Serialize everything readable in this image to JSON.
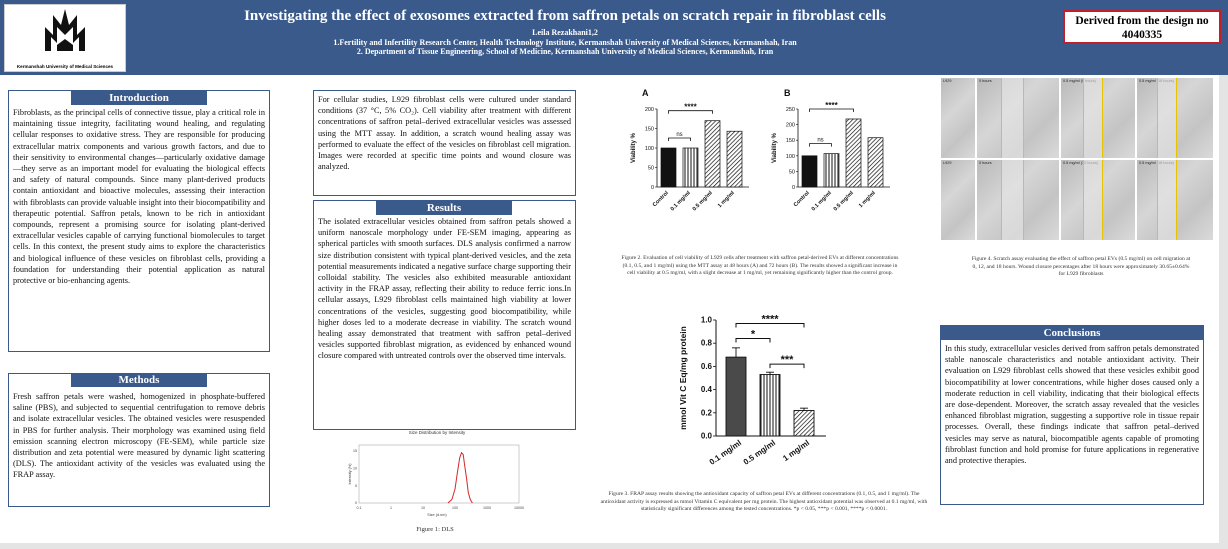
{
  "header": {
    "title": "Investigating the effect of exosomes extracted from saffron petals on scratch repair in fibroblast cells",
    "author": "Leila Rezakhani1,2",
    "affiliation_1": "1.Fertility and Infertility Research Center, Health Technology Institute, Kermanshah University of Medical Sciences, Kermanshah, Iran",
    "affiliation_2": "2. Department of Tissue Engineering, School of Medicine, Kermanshah University of Medical Sciences, Kermanshah, Iran",
    "logo_text": "Kermanshah University of Medical Sciences",
    "derived_label": "Derived from the design no 4040335"
  },
  "introduction": {
    "heading": "Introduction",
    "body": "Fibroblasts, as the principal cells of connective tissue, play a critical role in maintaining tissue integrity, facilitating wound healing, and regulating cellular responses to oxidative stress. They are responsible for producing extracellular matrix components and various growth factors, and due to their sensitivity to environmental changes—particularly oxidative damage—they serve as an important model for evaluating the biological effects and safety of natural compounds. Since many plant-derived products contain antioxidant and bioactive molecules, assessing their interaction with fibroblasts can provide valuable insight into their biocompatibility and therapeutic potential. Saffron petals, known to be rich in antioxidant compounds, represent a promising source for isolating plant-derived extracellular vesicles capable of carrying functional biomolecules to target cells. In this context, the present study aims to explore the characteristics and biological influence of these vesicles on fibroblast cells, providing a foundation for understanding their potential application as natural protective or bio-enhancing agents."
  },
  "methods": {
    "heading": "Methods",
    "body": "Fresh saffron petals were washed, homogenized in phosphate-buffered saline (PBS), and subjected to sequential centrifugation to remove debris and isolate extracellular vesicles. The obtained vesicles were resuspended in PBS for further analysis. Their morphology was examined using field emission scanning electron microscopy (FE-SEM), while particle size distribution and zeta potential were measured by dynamic light scattering (DLS). The antioxidant activity of the vesicles was evaluated using the FRAP assay."
  },
  "methods_cont": {
    "body": "For cellular studies, L929 fibroblast cells were cultured under standard conditions (37 °C, 5% CO₂). Cell viability after treatment with different concentrations of saffron petal–derived extracellular vesicles was assessed using the MTT assay. In addition, a scratch wound healing assay was performed to evaluate the effect of the vesicles on fibroblast cell migration. Images were recorded at specific time points and wound closure was analyzed."
  },
  "results": {
    "heading": "Results",
    "body": "The isolated extracellular vesicles obtained from saffron petals showed a uniform nanoscale morphology under FE-SEM imaging, appearing as spherical particles with smooth surfaces. DLS analysis confirmed a narrow size distribution consistent with typical plant-derived vesicles, and the zeta potential measurements indicated a negative surface charge supporting their colloidal stability. The vesicles also exhibited measurable antioxidant activity in the FRAP assay, reflecting their ability to reduce ferric ions.In cellular assays, L929 fibroblast cells maintained high viability at lower concentrations of the vesicles, suggesting good biocompatibility, while higher doses led to a moderate decrease in viability. The scratch wound healing assay demonstrated that treatment with saffron petal–derived vesicles supported fibroblast migration, as evidenced by enhanced wound closure compared with untreated controls over the observed time intervals."
  },
  "conclusions": {
    "heading": "Conclusions",
    "body": "In this study, extracellular vesicles derived from saffron petals demonstrated stable nanoscale characteristics and notable antioxidant activity. Their evaluation on L929 fibroblast cells showed that these vesicles exhibit good biocompatibility at lower concentrations, while higher doses caused only a moderate reduction in cell viability, indicating that their biological effects are dose-dependent. Moreover, the scratch assay revealed that the vesicles enhanced fibroblast migration, suggesting a supportive role in tissue repair processes. Overall, these findings indicate that saffron petal–derived vesicles may serve as natural, biocompatible agents capable of promoting fibroblast function and hold promise for future applications in regenerative and protective therapies."
  },
  "figures": {
    "fig1_caption": "Figure 1: DLS",
    "fig1_title": "Size Distribution by Intensity",
    "fig1_xlabel": "Size (d.nm)",
    "fig1_ylabel": "Intensity (%)",
    "fig2_caption": "Figure 2. Evaluation of cell viability of L929 cells after treatment with saffron petal-derived EVs at different concentrations (0.1, 0.5, and 1 mg/ml) using the MTT assay at 48 hours (A) and 72 hours (B). The results showed a significant increase in cell viability at 0.5 mg/ml, with a slight decrease at 1 mg/ml, yet remaining significantly higher than the control group.",
    "fig3_caption": "Figure 3. FRAP assay results showing the antioxidant capacity of saffron petal EVs at different concentrations (0.1, 0.5, and 1 mg/ml). The antioxidant activity is expressed as mmol Vitamin C equivalent per mg protein. The highest antioxidant potential was observed at 0.1 mg/ml, with statistically significant differences among the tested concentrations. *p < 0.05, ***p < 0.001, ****p < 0.0001.",
    "fig4_caption": "Figure 4. Scratch assay evaluating the effect of saffron petal EVs (0.5 mg/ml) on cell migration at 0, 12, and 18 hours. Wound closure percentages after 18 hours were approximately 30.65±0.64% for L929 fibroblasts",
    "fig4_labels": [
      "L929",
      "0 hours",
      "0.5 mg/ml (0 hours)",
      "0.5 mg/ml (18 hours)",
      "L929",
      "0 hours",
      "0.5 mg/ml (12 hours)",
      "0.5 mg/ml (18 hours)"
    ]
  },
  "chart_data": [
    {
      "id": "fig1",
      "type": "line",
      "title": "Size Distribution by Intensity",
      "xlabel": "Size (d.nm)",
      "ylabel": "Intensity (%)",
      "x_scale": "log",
      "x_ticks": [
        "0.1",
        "1",
        "10",
        "100",
        "1000",
        "10000"
      ],
      "y_ticks": [
        "0",
        "5",
        "10",
        "15"
      ],
      "x": [
        60,
        80,
        100,
        120,
        140,
        160,
        180,
        200,
        230,
        260,
        300,
        350
      ],
      "y": [
        0,
        1,
        4,
        9,
        13,
        14.5,
        14,
        11,
        7,
        3,
        1,
        0
      ]
    },
    {
      "id": "fig2A",
      "panel": "A",
      "type": "bar",
      "ylabel": "Viability %",
      "categories": [
        "Control",
        "0.1 mg/ml",
        "0.5 mg/ml",
        "1 mg/ml"
      ],
      "values": [
        100,
        100,
        170,
        143
      ],
      "ylim": [
        0,
        200
      ],
      "yticks": [
        0,
        50,
        100,
        150,
        200
      ],
      "annotations": [
        "ns",
        "****"
      ]
    },
    {
      "id": "fig2B",
      "panel": "B",
      "type": "bar",
      "ylabel": "Viability %",
      "categories": [
        "Control",
        "0.1 mg/ml",
        "0.5 mg/ml",
        "1 mg/ml"
      ],
      "values": [
        100,
        107,
        218,
        158
      ],
      "ylim": [
        0,
        250
      ],
      "yticks": [
        0,
        50,
        100,
        150,
        200,
        250
      ],
      "annotations": [
        "ns",
        "****"
      ]
    },
    {
      "id": "fig3",
      "type": "bar",
      "ylabel": "mmol Vit C Eq/mg protein",
      "categories": [
        "0.1 mg/ml",
        "0.5 mg/ml",
        "1 mg/ml"
      ],
      "values": [
        0.68,
        0.53,
        0.22
      ],
      "errors": [
        0.08,
        0.02,
        0.02
      ],
      "ylim": [
        0,
        1.0
      ],
      "yticks": [
        "0.0",
        "0.2",
        "0.4",
        "0.6",
        "0.8",
        "1.0"
      ],
      "annotations": [
        "****",
        "*",
        "***"
      ]
    }
  ],
  "colors": {
    "header_bg": "#3a5a8c",
    "accent_red": "#c0202a",
    "bar_dark": "#111111",
    "dls_line": "#d62728",
    "scratch_line": "#e8c400"
  }
}
